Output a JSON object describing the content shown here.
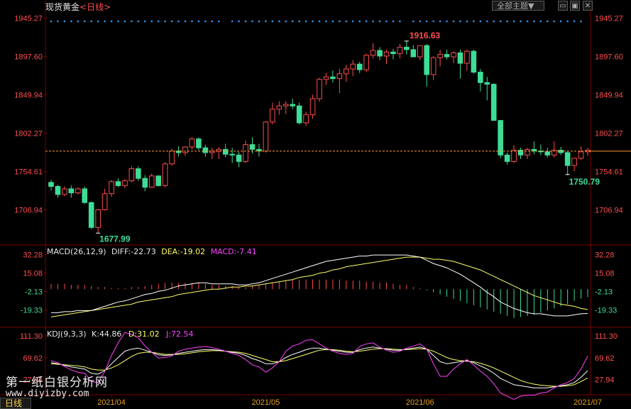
{
  "header": {
    "title": "现货黄金",
    "period": "<日线>",
    "theme_button": "全部主题▼",
    "minimize_glyph": "▭",
    "restore_glyph": "▣",
    "close_glyph": "✕",
    "period_tab": "日线"
  },
  "watermark": {
    "line1": "第一纸白银分析网",
    "line2": "www.diyizby.com"
  },
  "colors": {
    "up": "#ff4d4d",
    "down": "#3ddc97",
    "axis_text_up": "#ff4d4d",
    "axis_text_down": "#3ddc97",
    "dif": "#ffffff",
    "dea": "#ffff66",
    "macd_label": "#ff44ff",
    "k": "#ffffff",
    "d": "#ffff66",
    "j": "#ff44ff",
    "price_line": "#ff9933",
    "grid": "#7a0000",
    "dot": "#3399ff"
  },
  "chart_data": [
    {
      "type": "candlestick",
      "panel": "price",
      "y_ticks": [
        "1945.27",
        "1897.60",
        "1849.94",
        "1802.27",
        "1754.61",
        "1706.94"
      ],
      "y_tick_values": [
        1945.27,
        1897.6,
        1849.94,
        1802.27,
        1754.61,
        1706.94
      ],
      "ylim": [
        1665,
        1950
      ],
      "high_label": "1916.63",
      "low_label": "1677.99",
      "recent_low_label": "1750.79",
      "current_price": 1779.8,
      "x_labels": [
        {
          "text": "2021/04",
          "index": 9
        },
        {
          "text": "2021/05",
          "index": 32
        },
        {
          "text": "2021/06",
          "index": 55
        },
        {
          "text": "2021/07",
          "index": 80
        }
      ],
      "candles": [
        [
          1741,
          1744,
          1731,
          1736
        ],
        [
          1736,
          1738,
          1722,
          1726
        ],
        [
          1726,
          1736,
          1724,
          1733
        ],
        [
          1733,
          1737,
          1722,
          1728
        ],
        [
          1728,
          1735,
          1726,
          1733
        ],
        [
          1733,
          1736,
          1714,
          1716
        ],
        [
          1716,
          1717,
          1683,
          1685
        ],
        [
          1685,
          1708,
          1678,
          1707
        ],
        [
          1707,
          1733,
          1706,
          1727
        ],
        [
          1727,
          1744,
          1723,
          1742
        ],
        [
          1742,
          1746,
          1735,
          1737
        ],
        [
          1737,
          1745,
          1734,
          1743
        ],
        [
          1743,
          1761,
          1741,
          1758
        ],
        [
          1758,
          1761,
          1743,
          1746
        ],
        [
          1746,
          1750,
          1730,
          1735
        ],
        [
          1735,
          1752,
          1734,
          1749
        ],
        [
          1749,
          1750,
          1736,
          1737
        ],
        [
          1737,
          1766,
          1735,
          1764
        ],
        [
          1764,
          1783,
          1762,
          1780
        ],
        [
          1780,
          1786,
          1773,
          1778
        ],
        [
          1778,
          1786,
          1774,
          1785
        ],
        [
          1785,
          1797,
          1782,
          1795
        ],
        [
          1795,
          1797,
          1781,
          1784
        ],
        [
          1784,
          1788,
          1773,
          1778
        ],
        [
          1778,
          1784,
          1770,
          1780
        ],
        [
          1780,
          1785,
          1770,
          1782
        ],
        [
          1782,
          1789,
          1772,
          1776
        ],
        [
          1776,
          1784,
          1765,
          1775
        ],
        [
          1775,
          1779,
          1760,
          1767
        ],
        [
          1767,
          1793,
          1765,
          1788
        ],
        [
          1788,
          1797,
          1777,
          1782
        ],
        [
          1782,
          1789,
          1773,
          1780
        ],
        [
          1780,
          1817,
          1778,
          1816
        ],
        [
          1816,
          1840,
          1813,
          1832
        ],
        [
          1832,
          1842,
          1825,
          1836
        ],
        [
          1836,
          1842,
          1826,
          1838
        ],
        [
          1838,
          1845,
          1832,
          1836
        ],
        [
          1836,
          1840,
          1813,
          1815
        ],
        [
          1815,
          1829,
          1811,
          1825
        ],
        [
          1825,
          1850,
          1820,
          1845
        ],
        [
          1845,
          1871,
          1841,
          1869
        ],
        [
          1869,
          1877,
          1862,
          1872
        ],
        [
          1872,
          1880,
          1865,
          1870
        ],
        [
          1870,
          1882,
          1852,
          1876
        ],
        [
          1876,
          1887,
          1866,
          1882
        ],
        [
          1882,
          1893,
          1873,
          1888
        ],
        [
          1888,
          1891,
          1877,
          1881
        ],
        [
          1881,
          1901,
          1878,
          1899
        ],
        [
          1899,
          1914,
          1895,
          1905
        ],
        [
          1905,
          1909,
          1893,
          1898
        ],
        [
          1898,
          1906,
          1888,
          1903
        ],
        [
          1903,
          1907,
          1894,
          1901
        ],
        [
          1901,
          1913,
          1895,
          1909
        ],
        [
          1909,
          1917,
          1900,
          1906
        ],
        [
          1906,
          1912,
          1898,
          1897
        ],
        [
          1897,
          1911,
          1893,
          1911
        ],
        [
          1911,
          1913,
          1860,
          1875
        ],
        [
          1875,
          1898,
          1868,
          1896
        ],
        [
          1896,
          1906,
          1885,
          1900
        ],
        [
          1900,
          1906,
          1894,
          1897
        ],
        [
          1897,
          1904,
          1889,
          1902
        ],
        [
          1902,
          1906,
          1870,
          1889
        ],
        [
          1889,
          1906,
          1880,
          1904
        ],
        [
          1904,
          1906,
          1876,
          1878
        ],
        [
          1878,
          1882,
          1854,
          1865
        ],
        [
          1865,
          1872,
          1843,
          1863
        ],
        [
          1863,
          1864,
          1818,
          1818
        ],
        [
          1818,
          1818,
          1771,
          1775
        ],
        [
          1775,
          1778,
          1763,
          1767
        ],
        [
          1767,
          1787,
          1765,
          1781
        ],
        [
          1781,
          1784,
          1770,
          1775
        ],
        [
          1775,
          1784,
          1770,
          1782
        ],
        [
          1782,
          1792,
          1776,
          1780
        ],
        [
          1780,
          1788,
          1775,
          1779
        ],
        [
          1779,
          1784,
          1772,
          1775
        ],
        [
          1775,
          1792,
          1772,
          1781
        ],
        [
          1781,
          1785,
          1775,
          1778
        ],
        [
          1778,
          1780,
          1750,
          1762
        ],
        [
          1762,
          1771,
          1755,
          1771
        ],
        [
          1771,
          1786,
          1769,
          1779
        ],
        [
          1779,
          1784,
          1774,
          1781
        ]
      ],
      "top_marker_indices": [
        0,
        1,
        2,
        3,
        4,
        5,
        6,
        7,
        8,
        9,
        10,
        11,
        12,
        13,
        14,
        15,
        16,
        17,
        18,
        19,
        20,
        21,
        22,
        23,
        24,
        25,
        26,
        27,
        28,
        29,
        30,
        31,
        32,
        33,
        34,
        35,
        36,
        37,
        38,
        39,
        40,
        41,
        42,
        43,
        44,
        45,
        46,
        47,
        48,
        49,
        50,
        51,
        52,
        53,
        54,
        55,
        56,
        57,
        58,
        59,
        60,
        61,
        62,
        63,
        64,
        65,
        66,
        67,
        68,
        69,
        70,
        71,
        72,
        73,
        74,
        75,
        76,
        77,
        78,
        79,
        80
      ]
    },
    {
      "type": "macd",
      "panel": "macd",
      "label": "MACD(26,12,9)",
      "dif_label": "DIFF:-22.73",
      "dea_label": "DEA:-19.02",
      "macd_label": "MACD:-7.41",
      "y_ticks": [
        "32.28",
        "15.08",
        "-2.13",
        "-19.33"
      ],
      "y_tick_values": [
        32.28,
        15.08,
        -2.13,
        -19.33
      ],
      "ylim": [
        -35,
        40
      ],
      "dif": [
        -22,
        -22,
        -21,
        -21,
        -20,
        -20,
        -20,
        -18,
        -16,
        -14,
        -12,
        -11,
        -9,
        -7,
        -5,
        -4,
        -2,
        -1,
        1,
        3,
        4,
        5,
        6,
        6,
        5,
        5,
        5,
        5,
        4,
        4,
        5,
        6,
        8,
        10,
        12,
        14,
        16,
        18,
        20,
        22,
        24,
        26,
        27,
        28,
        29,
        30,
        31,
        31,
        32,
        32,
        32,
        32,
        32,
        32,
        31,
        30,
        27,
        24,
        22,
        20,
        17,
        14,
        10,
        6,
        2,
        -3,
        -7,
        -12,
        -15,
        -18,
        -20,
        -22,
        -23,
        -23,
        -24,
        -25,
        -25,
        -25,
        -24,
        -23,
        -22.73
      ],
      "dea": [
        -26,
        -25,
        -24,
        -23,
        -22,
        -21,
        -20,
        -19,
        -18,
        -17,
        -16,
        -15,
        -14,
        -12,
        -11,
        -10,
        -9,
        -8,
        -7,
        -5,
        -4,
        -3,
        -2,
        -1,
        0,
        0,
        1,
        2,
        2,
        3,
        3,
        4,
        5,
        6,
        7,
        8,
        9,
        11,
        12,
        13,
        15,
        16,
        18,
        19,
        21,
        22,
        23,
        24,
        25,
        26,
        27,
        28,
        29,
        30,
        30,
        30,
        29,
        28,
        28,
        27,
        26,
        24,
        22,
        20,
        18,
        15,
        12,
        9,
        6,
        3,
        0,
        -3,
        -6,
        -8,
        -10,
        -12,
        -14,
        -15,
        -16,
        -18,
        -19.02
      ],
      "hist": [
        5,
        5,
        5,
        4,
        4,
        4,
        3,
        2,
        2,
        1,
        1,
        1,
        2,
        2,
        3,
        4,
        5,
        6,
        6,
        6,
        6,
        6,
        6,
        5,
        4,
        4,
        3,
        3,
        2,
        2,
        3,
        4,
        5,
        6,
        7,
        8,
        9,
        9,
        9,
        9,
        9,
        9,
        9,
        9,
        8,
        8,
        8,
        7,
        7,
        6,
        6,
        5,
        4,
        4,
        2,
        1,
        -1,
        -3,
        -5,
        -7,
        -9,
        -11,
        -13,
        -15,
        -17,
        -19,
        -21,
        -23,
        -25,
        -27,
        -26,
        -25,
        -24,
        -22,
        -20,
        -18,
        -16,
        -14,
        -11,
        -9,
        -7.41
      ]
    },
    {
      "type": "kdj",
      "panel": "kdj",
      "label": "KDJ(9,3,3)",
      "k_label": "K:44.86",
      "d_label": "D:31.02",
      "j_label": "J:72.54",
      "y_ticks": [
        "111.30",
        "69.62",
        "27.94"
      ],
      "y_tick_values": [
        111.3,
        69.62,
        27.94
      ],
      "ylim": [
        0,
        125
      ],
      "k": [
        60,
        58,
        55,
        52,
        50,
        48,
        40,
        38,
        45,
        58,
        70,
        82,
        86,
        88,
        84,
        80,
        75,
        74,
        75,
        78,
        80,
        82,
        84,
        85,
        85,
        84,
        82,
        80,
        78,
        74,
        68,
        64,
        58,
        58,
        62,
        70,
        76,
        80,
        85,
        88,
        88,
        86,
        84,
        82,
        80,
        80,
        85,
        88,
        90,
        88,
        86,
        84,
        84,
        86,
        88,
        90,
        86,
        74,
        62,
        58,
        60,
        62,
        64,
        60,
        54,
        48,
        40,
        30,
        24,
        18,
        16,
        14,
        12,
        12,
        12,
        14,
        16,
        18,
        22,
        32,
        44.86
      ],
      "d": [
        58,
        57,
        56,
        55,
        54,
        52,
        48,
        46,
        46,
        50,
        56,
        64,
        72,
        78,
        80,
        80,
        78,
        76,
        76,
        76,
        77,
        79,
        81,
        82,
        83,
        83,
        82,
        81,
        80,
        78,
        74,
        70,
        66,
        62,
        62,
        64,
        68,
        72,
        76,
        80,
        84,
        85,
        85,
        84,
        82,
        81,
        82,
        84,
        86,
        87,
        87,
        86,
        85,
        85,
        86,
        87,
        86,
        82,
        76,
        70,
        66,
        64,
        63,
        62,
        59,
        55,
        50,
        44,
        38,
        32,
        26,
        22,
        19,
        17,
        16,
        15,
        15,
        16,
        18,
        24,
        31.02
      ],
      "j": [
        64,
        60,
        53,
        46,
        42,
        40,
        24,
        22,
        43,
        74,
        98,
        118,
        114,
        108,
        92,
        80,
        69,
        70,
        73,
        82,
        86,
        88,
        90,
        91,
        89,
        86,
        82,
        78,
        74,
        66,
        56,
        52,
        42,
        50,
        62,
        82,
        92,
        96,
        103,
        104,
        96,
        88,
        82,
        78,
        76,
        78,
        91,
        96,
        98,
        90,
        84,
        80,
        82,
        88,
        92,
        96,
        86,
        58,
        34,
        34,
        48,
        58,
        66,
        56,
        44,
        34,
        20,
        2,
        -4,
        -10,
        -4,
        -2,
        -2,
        2,
        4,
        12,
        18,
        22,
        30,
        48,
        72.54
      ]
    }
  ]
}
